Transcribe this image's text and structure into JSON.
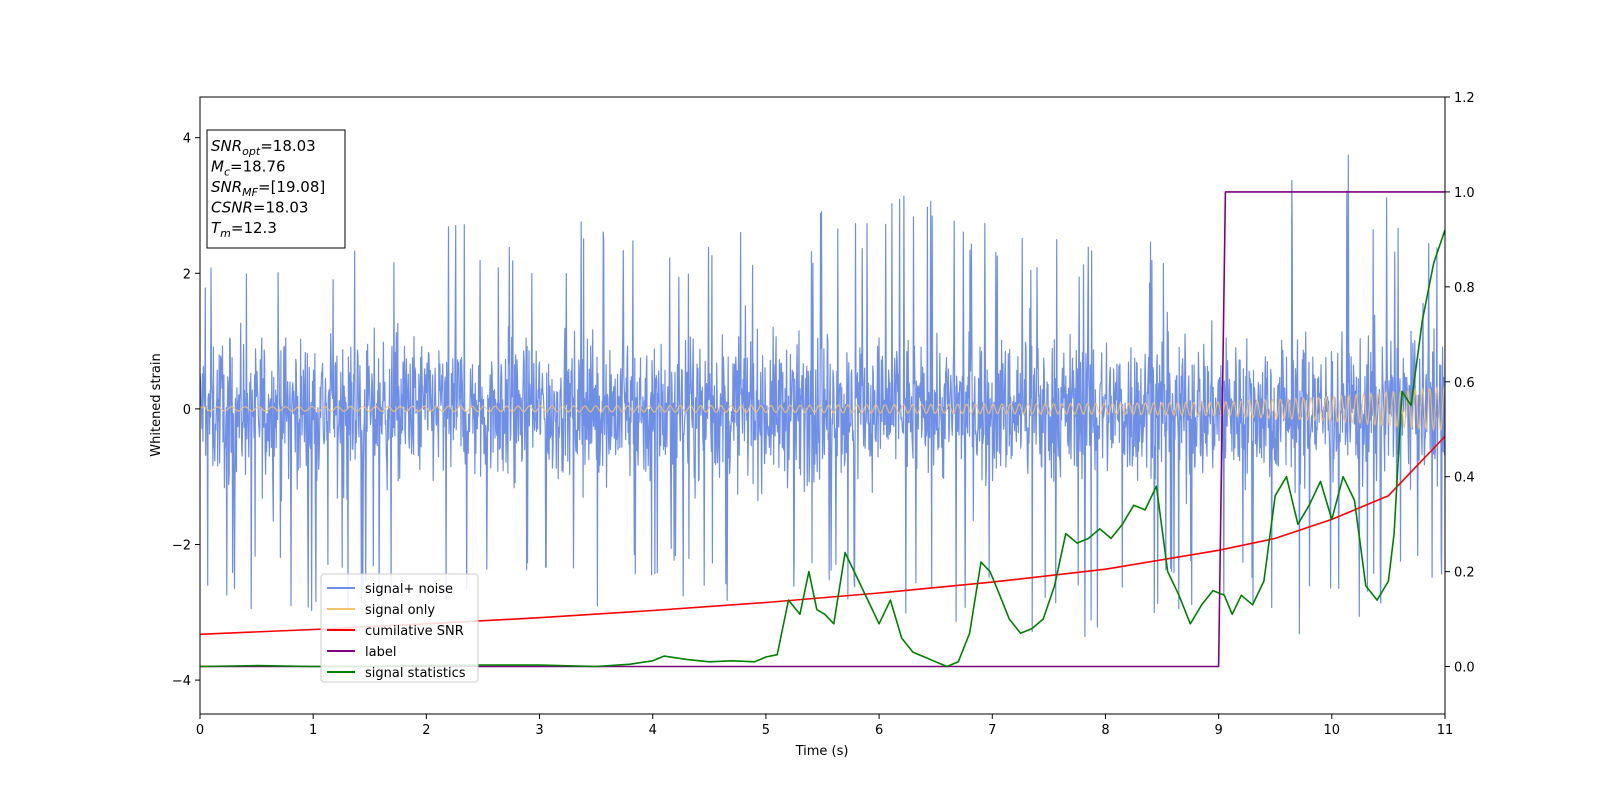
{
  "chart_data": {
    "type": "line",
    "xlabel": "Time (s)",
    "ylabel": "Whitened strain",
    "xlim": [
      0,
      11
    ],
    "ylim": [
      -4.5,
      4.6
    ],
    "y2lim": [
      -0.1,
      1.2
    ],
    "x_ticks": [
      0,
      1,
      2,
      3,
      4,
      5,
      6,
      7,
      8,
      9,
      10,
      11
    ],
    "y_ticks": [
      -4,
      -2,
      0,
      2,
      4
    ],
    "y2_ticks": [
      0.0,
      0.2,
      0.4,
      0.6,
      0.8,
      1.0,
      1.2
    ],
    "annotation": {
      "lines": [
        {
          "label": "SNR",
          "sub": "opt",
          "value": "=18.03"
        },
        {
          "label": "M",
          "sub": "c",
          "value": "=18.76"
        },
        {
          "label": "SNR",
          "sub": "MF",
          "value": "=[19.08]"
        },
        {
          "label": "CSNR",
          "sub": "",
          "value": "=18.03"
        },
        {
          "label": "T",
          "sub": "m",
          "value": "=12.3"
        }
      ]
    },
    "legend_position": "lower-left",
    "series": [
      {
        "name": "signal+ noise",
        "color": "#6f8fe6",
        "axis": "left",
        "style": "noise",
        "envelope_x": [
          0,
          1,
          2,
          3,
          4,
          5,
          6,
          7,
          8,
          9,
          10,
          11
        ],
        "envelope_upper": [
          2.4,
          2.6,
          2.7,
          2.8,
          2.7,
          2.7,
          3.3,
          2.8,
          2.6,
          2.6,
          4.0,
          2.6
        ],
        "envelope_lower": [
          -2.9,
          -3.0,
          -2.8,
          -3.1,
          -2.8,
          -3.0,
          -3.2,
          -3.3,
          -3.5,
          -3.0,
          -3.5,
          -2.9
        ]
      },
      {
        "name": "signal only",
        "color": "#f5c26b",
        "axis": "left",
        "style": "chirp",
        "amplitude_x": [
          0,
          5,
          8,
          9,
          10,
          11
        ],
        "amplitude": [
          0.03,
          0.05,
          0.08,
          0.1,
          0.18,
          0.32
        ]
      },
      {
        "name": "cumilative SNR",
        "color": "#ff0000",
        "axis": "right",
        "x": [
          0,
          1,
          2,
          3,
          4,
          5,
          6,
          7,
          8,
          9,
          9.5,
          10,
          10.5,
          11
        ],
        "y": [
          0.068,
          0.078,
          0.09,
          0.103,
          0.118,
          0.135,
          0.155,
          0.178,
          0.205,
          0.245,
          0.27,
          0.31,
          0.36,
          0.485
        ]
      },
      {
        "name": "label",
        "color": "#800080",
        "axis": "right",
        "x": [
          0,
          9.0,
          9.06,
          11
        ],
        "y": [
          0,
          0,
          1,
          1
        ]
      },
      {
        "name": "signal statistics",
        "color": "#008000",
        "axis": "right",
        "x": [
          0,
          0.5,
          1,
          1.5,
          2,
          2.5,
          3,
          3.5,
          3.8,
          4.0,
          4.1,
          4.3,
          4.5,
          4.7,
          4.9,
          5.0,
          5.1,
          5.2,
          5.3,
          5.38,
          5.45,
          5.52,
          5.6,
          5.7,
          5.8,
          5.9,
          6.0,
          6.1,
          6.2,
          6.3,
          6.4,
          6.5,
          6.6,
          6.7,
          6.8,
          6.9,
          6.98,
          7.05,
          7.15,
          7.25,
          7.35,
          7.45,
          7.55,
          7.65,
          7.75,
          7.85,
          7.95,
          8.05,
          8.15,
          8.25,
          8.35,
          8.45,
          8.55,
          8.65,
          8.75,
          8.85,
          8.95,
          9.05,
          9.12,
          9.2,
          9.3,
          9.4,
          9.5,
          9.6,
          9.7,
          9.8,
          9.9,
          10.0,
          10.1,
          10.2,
          10.3,
          10.4,
          10.5,
          10.55,
          10.62,
          10.7,
          10.8,
          10.9,
          11.0
        ],
        "y": [
          0.0,
          0.002,
          0.0,
          0.0,
          0.002,
          0.003,
          0.003,
          0.0,
          0.005,
          0.012,
          0.022,
          0.015,
          0.01,
          0.012,
          0.01,
          0.02,
          0.025,
          0.14,
          0.11,
          0.2,
          0.12,
          0.11,
          0.09,
          0.24,
          0.19,
          0.14,
          0.09,
          0.14,
          0.06,
          0.03,
          0.02,
          0.01,
          0.0,
          0.01,
          0.07,
          0.22,
          0.2,
          0.16,
          0.1,
          0.07,
          0.08,
          0.1,
          0.17,
          0.28,
          0.26,
          0.27,
          0.29,
          0.27,
          0.3,
          0.34,
          0.33,
          0.38,
          0.2,
          0.15,
          0.09,
          0.13,
          0.16,
          0.15,
          0.11,
          0.15,
          0.13,
          0.18,
          0.36,
          0.4,
          0.3,
          0.34,
          0.39,
          0.31,
          0.4,
          0.35,
          0.17,
          0.14,
          0.18,
          0.28,
          0.58,
          0.55,
          0.73,
          0.85,
          0.92
        ]
      }
    ]
  }
}
